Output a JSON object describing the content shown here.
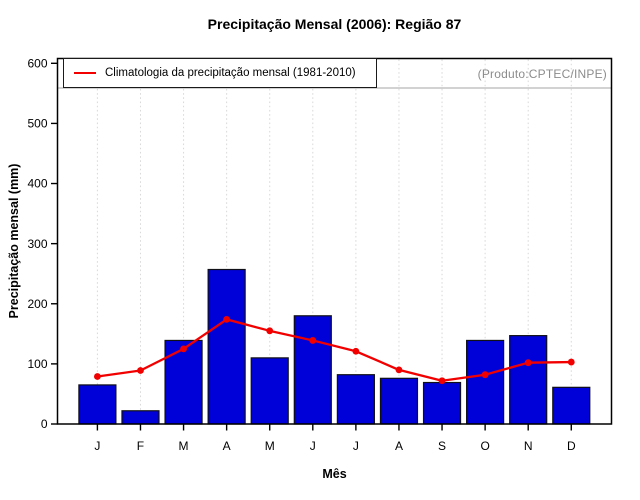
{
  "watermark": "(Produto:CPTEC/INPE)",
  "colors": {
    "bar": "#0000D8",
    "bar_border": "#101018",
    "line": "#F20000",
    "grid": "#D9D9D9",
    "band_line": "#A6A6A6",
    "axis": "#000000",
    "watermark_text": "#8C8C8C",
    "background": "#FFFFFF"
  },
  "chart_data": {
    "type": "bar",
    "title": "Precipitação Mensal (2006): Região 87",
    "xlabel": "Mês",
    "ylabel": "Precipitação mensal (mm)",
    "categories": [
      "J",
      "F",
      "M",
      "A",
      "M",
      "J",
      "J",
      "A",
      "S",
      "O",
      "N",
      "D"
    ],
    "series": [
      {
        "name": "Precipitação mensal (2006)",
        "type": "bar",
        "values": [
          65,
          22,
          139,
          257,
          110,
          180,
          82,
          76,
          69,
          139,
          147,
          61
        ]
      },
      {
        "name": "Climatologia da precipitação mensal (1981-2010)",
        "type": "line",
        "values": [
          79,
          89,
          125,
          174,
          155,
          139,
          121,
          90,
          72,
          82,
          102,
          103
        ]
      }
    ],
    "ylim": [
      0,
      600
    ],
    "y_ticks": [
      0,
      100,
      200,
      300,
      400,
      500,
      600
    ],
    "grid": "vertical-dotted",
    "legend_position": "top-left-inside"
  }
}
